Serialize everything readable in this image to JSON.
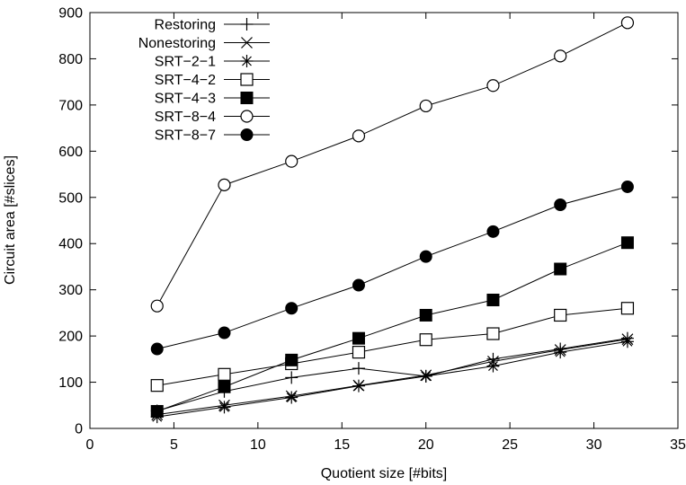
{
  "chart_data": {
    "type": "line",
    "title": "",
    "xlabel": "Quotient size [#bits]",
    "ylabel": "Circuit area [#slices]",
    "xlim": [
      0,
      35
    ],
    "ylim": [
      0,
      900
    ],
    "xticks": [
      0,
      5,
      10,
      15,
      20,
      25,
      30,
      35
    ],
    "yticks": [
      0,
      100,
      200,
      300,
      400,
      500,
      600,
      700,
      800,
      900
    ],
    "grid": false,
    "legend_position": "top-left",
    "x": [
      4,
      8,
      12,
      16,
      20,
      24,
      28,
      32
    ],
    "series": [
      {
        "name": "Restoring",
        "marker": "plus",
        "values": [
          38,
          80,
          110,
          130,
          113,
          150,
          172,
          195
        ]
      },
      {
        "name": "Nonestoring",
        "marker": "cross",
        "values": [
          30,
          50,
          70,
          93,
          115,
          145,
          170,
          193
        ]
      },
      {
        "name": "SRT−2−1",
        "marker": "asterisk",
        "values": [
          25,
          46,
          67,
          92,
          113,
          135,
          165,
          188
        ]
      },
      {
        "name": "SRT−4−2",
        "marker": "open-square",
        "values": [
          93,
          117,
          140,
          165,
          192,
          205,
          245,
          260
        ]
      },
      {
        "name": "SRT−4−3",
        "marker": "filled-square",
        "values": [
          37,
          90,
          148,
          195,
          245,
          278,
          345,
          402
        ]
      },
      {
        "name": "SRT−8−4",
        "marker": "open-circle",
        "values": [
          265,
          527,
          578,
          633,
          698,
          742,
          806,
          878
        ]
      },
      {
        "name": "SRT−8−7",
        "marker": "filled-circle",
        "values": [
          172,
          207,
          260,
          310,
          372,
          426,
          484,
          523
        ]
      }
    ]
  }
}
